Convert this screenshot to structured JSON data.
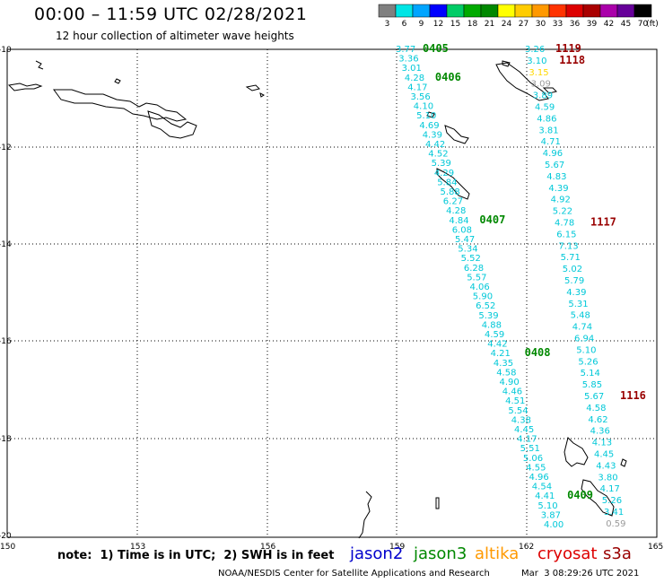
{
  "header": {
    "title": "00:00 – 11:59 UTC 02/28/2021",
    "subtitle": "12 hour collection of altimeter wave heights"
  },
  "legend": {
    "unit": "(ft)",
    "items": [
      {
        "value": "3",
        "color": "#808080"
      },
      {
        "value": "6",
        "color": "#00e5e5"
      },
      {
        "value": "9",
        "color": "#00a5ff"
      },
      {
        "value": "12",
        "color": "#0000ff"
      },
      {
        "value": "15",
        "color": "#00cc66"
      },
      {
        "value": "18",
        "color": "#00aa00"
      },
      {
        "value": "21",
        "color": "#008800"
      },
      {
        "value": "24",
        "color": "#ffff00"
      },
      {
        "value": "27",
        "color": "#ffcc00"
      },
      {
        "value": "30",
        "color": "#ff9900"
      },
      {
        "value": "33",
        "color": "#ff3300"
      },
      {
        "value": "36",
        "color": "#dd0000"
      },
      {
        "value": "39",
        "color": "#aa0000"
      },
      {
        "value": "42",
        "color": "#aa00aa"
      },
      {
        "value": "45",
        "color": "#660099"
      },
      {
        "value": "70",
        "color": "#000000"
      }
    ]
  },
  "axes": {
    "lat_ticks": [
      "-10",
      "-12",
      "-14",
      "-16",
      "-18",
      "-20"
    ],
    "lon_ticks": [
      "150",
      "153",
      "156",
      "159",
      "162",
      "165"
    ]
  },
  "colors": {
    "cyan": "#00c8d8",
    "gray": "#9a9a9a",
    "jason3_green": "#008800",
    "cryosat_red": "#990000",
    "yellow": "#ffd800"
  },
  "track_a": {
    "start_index": 0,
    "values": [
      {
        "v": "3.77",
        "c": "cyan"
      },
      {
        "v": "3.36",
        "c": "cyan"
      },
      {
        "v": "3.01",
        "c": "cyan"
      },
      {
        "v": "4.28",
        "c": "cyan"
      },
      {
        "v": "4.17",
        "c": "cyan"
      },
      {
        "v": "3.56",
        "c": "cyan"
      },
      {
        "v": "4.10",
        "c": "cyan"
      },
      {
        "v": "5.10",
        "c": "cyan"
      },
      {
        "v": "4.69",
        "c": "cyan"
      },
      {
        "v": "4.39",
        "c": "cyan"
      },
      {
        "v": "4.42",
        "c": "cyan"
      },
      {
        "v": "4.52",
        "c": "cyan"
      },
      {
        "v": "5.39",
        "c": "cyan"
      },
      {
        "v": "4.29",
        "c": "cyan"
      },
      {
        "v": "5.84",
        "c": "cyan"
      },
      {
        "v": "5.88",
        "c": "cyan"
      },
      {
        "v": "6.27",
        "c": "cyan"
      },
      {
        "v": "4.28",
        "c": "cyan"
      },
      {
        "v": "4.84",
        "c": "cyan"
      },
      {
        "v": "6.08",
        "c": "cyan"
      },
      {
        "v": "5.47",
        "c": "cyan"
      },
      {
        "v": "5.34",
        "c": "cyan"
      },
      {
        "v": "5.52",
        "c": "cyan"
      },
      {
        "v": "6.28",
        "c": "cyan"
      },
      {
        "v": "5.57",
        "c": "cyan"
      },
      {
        "v": "4.06",
        "c": "cyan"
      },
      {
        "v": "5.90",
        "c": "cyan"
      },
      {
        "v": "6.52",
        "c": "cyan"
      },
      {
        "v": "5.39",
        "c": "cyan"
      },
      {
        "v": "4.88",
        "c": "cyan"
      },
      {
        "v": "4.59",
        "c": "cyan"
      },
      {
        "v": "4.42",
        "c": "cyan"
      },
      {
        "v": "4.21",
        "c": "cyan"
      },
      {
        "v": "4.35",
        "c": "cyan"
      },
      {
        "v": "4.58",
        "c": "cyan"
      },
      {
        "v": "4.90",
        "c": "cyan"
      },
      {
        "v": "4.46",
        "c": "cyan"
      },
      {
        "v": "4.51",
        "c": "cyan"
      },
      {
        "v": "5.54",
        "c": "cyan"
      },
      {
        "v": "4.38",
        "c": "cyan"
      },
      {
        "v": "4.45",
        "c": "cyan"
      },
      {
        "v": "4.17",
        "c": "cyan"
      },
      {
        "v": "5.51",
        "c": "cyan"
      },
      {
        "v": "5.06",
        "c": "cyan"
      },
      {
        "v": "4.55",
        "c": "cyan"
      },
      {
        "v": "4.96",
        "c": "cyan"
      },
      {
        "v": "4.54",
        "c": "cyan"
      },
      {
        "v": "4.41",
        "c": "cyan"
      },
      {
        "v": "5.10",
        "c": "cyan"
      },
      {
        "v": "3.87",
        "c": "cyan"
      },
      {
        "v": "4.00",
        "c": "cyan"
      }
    ]
  },
  "track_b": {
    "start_index": 0,
    "values": [
      {
        "v": "3.26",
        "c": "cyan"
      },
      {
        "v": "3.10",
        "c": "cyan"
      },
      {
        "v": "3.15",
        "c": "yellow"
      },
      {
        "v": "3.09",
        "c": "gray"
      },
      {
        "v": "3.89",
        "c": "cyan"
      },
      {
        "v": "4.59",
        "c": "cyan"
      },
      {
        "v": "4.86",
        "c": "cyan"
      },
      {
        "v": "3.81",
        "c": "cyan"
      },
      {
        "v": "4.71",
        "c": "cyan"
      },
      {
        "v": "4.96",
        "c": "cyan"
      },
      {
        "v": "5.67",
        "c": "cyan"
      },
      {
        "v": "4.83",
        "c": "cyan"
      },
      {
        "v": "4.39",
        "c": "cyan"
      },
      {
        "v": "4.92",
        "c": "cyan"
      },
      {
        "v": "5.22",
        "c": "cyan"
      },
      {
        "v": "4.78",
        "c": "cyan"
      },
      {
        "v": "6.15",
        "c": "cyan"
      },
      {
        "v": "7.13",
        "c": "cyan"
      },
      {
        "v": "5.71",
        "c": "cyan"
      },
      {
        "v": "5.02",
        "c": "cyan"
      },
      {
        "v": "5.79",
        "c": "cyan"
      },
      {
        "v": "4.39",
        "c": "cyan"
      },
      {
        "v": "5.31",
        "c": "cyan"
      },
      {
        "v": "5.48",
        "c": "cyan"
      },
      {
        "v": "4.74",
        "c": "cyan"
      },
      {
        "v": "6.94",
        "c": "cyan"
      },
      {
        "v": "5.10",
        "c": "cyan"
      },
      {
        "v": "5.26",
        "c": "cyan"
      },
      {
        "v": "5.14",
        "c": "cyan"
      },
      {
        "v": "5.85",
        "c": "cyan"
      },
      {
        "v": "5.67",
        "c": "cyan"
      },
      {
        "v": "4.58",
        "c": "cyan"
      },
      {
        "v": "4.62",
        "c": "cyan"
      },
      {
        "v": "4.36",
        "c": "cyan"
      },
      {
        "v": "4.13",
        "c": "cyan"
      },
      {
        "v": "4.45",
        "c": "cyan"
      },
      {
        "v": "4.43",
        "c": "cyan"
      },
      {
        "v": "3.80",
        "c": "cyan"
      },
      {
        "v": "4.17",
        "c": "cyan"
      },
      {
        "v": "5.26",
        "c": "cyan"
      },
      {
        "v": "3.41",
        "c": "cyan"
      },
      {
        "v": "0.59",
        "c": "gray"
      }
    ]
  },
  "pass_labels": [
    {
      "text": "0405",
      "color": "jason3_green",
      "anchor": {
        "track": "a",
        "index": 0,
        "dx": 30
      }
    },
    {
      "text": "0406",
      "color": "jason3_green",
      "anchor": {
        "track": "a",
        "index": 3,
        "dx": 34
      }
    },
    {
      "text": "0407",
      "color": "jason3_green",
      "anchor": {
        "track": "a",
        "index": 18,
        "dx": 34
      }
    },
    {
      "text": "0408",
      "color": "jason3_green",
      "anchor": {
        "track": "a",
        "index": 32,
        "dx": 38
      }
    },
    {
      "text": "0409",
      "color": "jason3_green",
      "anchor": {
        "track": "a",
        "index": 47,
        "dx": 36
      }
    },
    {
      "text": "1119",
      "color": "cryosat_red",
      "anchor": {
        "track": "b",
        "index": 0,
        "dx": 34
      }
    },
    {
      "text": "1118",
      "color": "cryosat_red",
      "anchor": {
        "track": "b",
        "index": 1,
        "dx": 36
      }
    },
    {
      "text": "1117",
      "color": "cryosat_red",
      "anchor": {
        "track": "b",
        "index": 15,
        "dx": 40
      }
    },
    {
      "text": "1116",
      "color": "cryosat_red",
      "anchor": {
        "track": "b",
        "index": 30,
        "dx": 40
      }
    }
  ],
  "footer": {
    "note": "note:  1) Time is in UTC;  2) SWH is in feet",
    "satellites": [
      {
        "name": "jason2",
        "color": "#0000cc"
      },
      {
        "name": "jason3",
        "color": "#008800"
      },
      {
        "name": "altika",
        "color": "#ff9900"
      },
      {
        "name": "cryosat",
        "color": "#dd0000"
      },
      {
        "name": "s3a",
        "color": "#990000"
      }
    ],
    "credit": "NOAA/NESDIS Center for Satellite Applications and Research",
    "timestamp": "Mar  3 08:29:26 UTC 2021"
  }
}
